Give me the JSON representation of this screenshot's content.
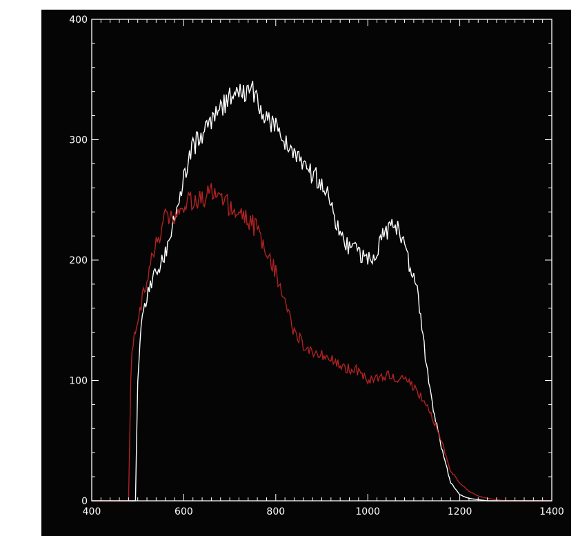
{
  "chart_data": {
    "type": "line",
    "title": "",
    "xlabel": "",
    "ylabel": "",
    "xlim": [
      400,
      1400
    ],
    "ylim": [
      0,
      400
    ],
    "xticks": [
      400,
      600,
      800,
      1000,
      1200,
      1400
    ],
    "yticks": [
      0,
      100,
      200,
      300,
      400
    ],
    "xtick_labels": [
      "400",
      "600",
      "800",
      "1000",
      "1200",
      "1400"
    ],
    "ytick_labels": [
      "0",
      "100",
      "200",
      "300",
      "400"
    ],
    "background": "#050505",
    "axis_color": "#ffffff",
    "grid": false,
    "series": [
      {
        "color": "#ffffff",
        "x": [
          400,
          495,
          500,
          505,
          515,
          530,
          550,
          570,
          590,
          610,
          630,
          650,
          670,
          690,
          710,
          730,
          745,
          760,
          780,
          800,
          820,
          840,
          860,
          880,
          900,
          920,
          940,
          960,
          980,
          1000,
          1020,
          1040,
          1060,
          1080,
          1095,
          1110,
          1125,
          1140,
          1160,
          1180,
          1200,
          1220,
          1240,
          1260,
          1280,
          1300,
          1400
        ],
        "y": [
          0,
          0,
          100,
          135,
          165,
          180,
          195,
          215,
          250,
          285,
          300,
          310,
          320,
          330,
          340,
          338,
          345,
          330,
          320,
          310,
          300,
          290,
          280,
          270,
          265,
          245,
          225,
          210,
          205,
          200,
          210,
          225,
          230,
          215,
          190,
          170,
          120,
          80,
          45,
          15,
          5,
          2,
          1,
          0,
          0,
          0,
          0
        ]
      },
      {
        "color": "#b22222",
        "x": [
          400,
          480,
          483,
          486,
          490,
          500,
          520,
          540,
          560,
          580,
          600,
          620,
          640,
          660,
          680,
          700,
          720,
          740,
          760,
          780,
          800,
          820,
          840,
          860,
          880,
          900,
          920,
          940,
          960,
          980,
          1000,
          1020,
          1040,
          1060,
          1080,
          1100,
          1120,
          1140,
          1160,
          1180,
          1200,
          1220,
          1240,
          1260,
          1280,
          1300,
          1400
        ],
        "y": [
          0,
          0,
          60,
          120,
          130,
          150,
          185,
          215,
          235,
          238,
          245,
          250,
          252,
          255,
          250,
          245,
          240,
          232,
          225,
          210,
          190,
          165,
          140,
          130,
          125,
          122,
          118,
          112,
          110,
          108,
          100,
          102,
          104,
          103,
          101,
          95,
          85,
          70,
          50,
          25,
          15,
          8,
          4,
          2,
          1,
          0,
          0
        ]
      }
    ]
  }
}
